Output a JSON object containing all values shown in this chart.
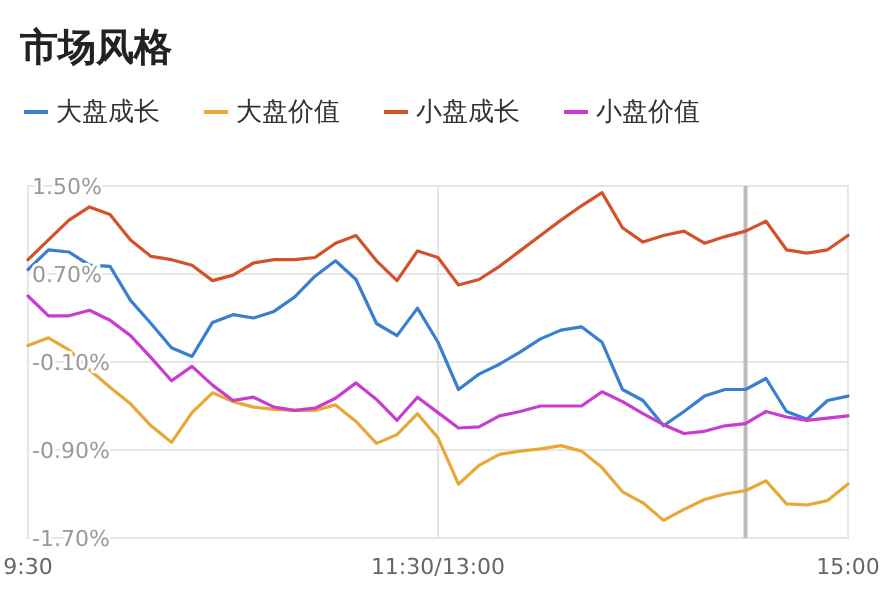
{
  "chart_data": {
    "type": "line",
    "title": "市场风格",
    "legend": "top",
    "grid": true,
    "marker": "none",
    "line_style": "solid",
    "categories": [
      "9:30",
      null,
      null,
      null,
      null,
      null,
      null,
      null,
      null,
      null,
      null,
      null,
      null,
      null,
      null,
      null,
      null,
      null,
      null,
      null,
      "11:30/13:00",
      null,
      null,
      null,
      null,
      null,
      null,
      null,
      null,
      null,
      null,
      null,
      null,
      null,
      null,
      null,
      null,
      null,
      null,
      null,
      "15:00"
    ],
    "ylim": [
      -1.7,
      1.5
    ],
    "yticks": [
      {
        "value": 1.5,
        "label": "1.50%"
      },
      {
        "value": 0.7,
        "label": "0.70%"
      },
      {
        "value": -0.1,
        "label": "-0.10%"
      },
      {
        "value": -0.9,
        "label": "-0.90%"
      },
      {
        "value": -1.7,
        "label": "-1.70%"
      }
    ],
    "series": [
      {
        "name": "大盘成长",
        "color": "#3a7fcf",
        "values": [
          0.74,
          0.92,
          0.9,
          0.78,
          0.77,
          0.46,
          0.25,
          0.03,
          -0.05,
          0.26,
          0.33,
          0.3,
          0.36,
          0.49,
          0.68,
          0.82,
          0.65,
          0.25,
          0.14,
          0.39,
          0.08,
          -0.35,
          -0.21,
          -0.12,
          -0.01,
          0.11,
          0.19,
          0.22,
          0.08,
          -0.35,
          -0.45,
          -0.68,
          -0.55,
          -0.41,
          -0.35,
          -0.35,
          -0.25,
          -0.55,
          -0.62,
          -0.45,
          -0.41
        ]
      },
      {
        "name": "大盘价值",
        "color": "#e8a838",
        "values": [
          0.05,
          0.12,
          0.01,
          -0.17,
          -0.33,
          -0.48,
          -0.68,
          -0.83,
          -0.56,
          -0.38,
          -0.46,
          -0.51,
          -0.53,
          -0.54,
          -0.54,
          -0.49,
          -0.64,
          -0.84,
          -0.76,
          -0.57,
          -0.79,
          -1.21,
          -1.04,
          -0.94,
          -0.91,
          -0.89,
          -0.86,
          -0.91,
          -1.06,
          -1.28,
          -1.38,
          -1.54,
          -1.44,
          -1.35,
          -1.3,
          -1.27,
          -1.18,
          -1.39,
          -1.4,
          -1.36,
          -1.21
        ]
      },
      {
        "name": "小盘成长",
        "color": "#d4522a",
        "values": [
          0.83,
          1.01,
          1.19,
          1.31,
          1.24,
          1.01,
          0.86,
          0.83,
          0.78,
          0.64,
          0.69,
          0.8,
          0.83,
          0.83,
          0.85,
          0.98,
          1.05,
          0.82,
          0.64,
          0.91,
          0.85,
          0.6,
          0.65,
          0.77,
          0.91,
          1.05,
          1.19,
          1.32,
          1.44,
          1.12,
          0.99,
          1.05,
          1.09,
          0.98,
          1.04,
          1.09,
          1.18,
          0.92,
          0.89,
          0.92,
          1.05
        ]
      },
      {
        "name": "小盘价值",
        "color": "#c83ccf",
        "values": [
          0.5,
          0.32,
          0.32,
          0.37,
          0.28,
          0.14,
          -0.06,
          -0.27,
          -0.14,
          -0.31,
          -0.45,
          -0.42,
          -0.51,
          -0.54,
          -0.52,
          -0.43,
          -0.29,
          -0.44,
          -0.63,
          -0.42,
          -0.56,
          -0.7,
          -0.69,
          -0.59,
          -0.55,
          -0.5,
          -0.5,
          -0.5,
          -0.37,
          -0.46,
          -0.57,
          -0.67,
          -0.75,
          -0.73,
          -0.68,
          -0.66,
          -0.55,
          -0.6,
          -0.63,
          -0.61,
          -0.59
        ]
      }
    ]
  }
}
